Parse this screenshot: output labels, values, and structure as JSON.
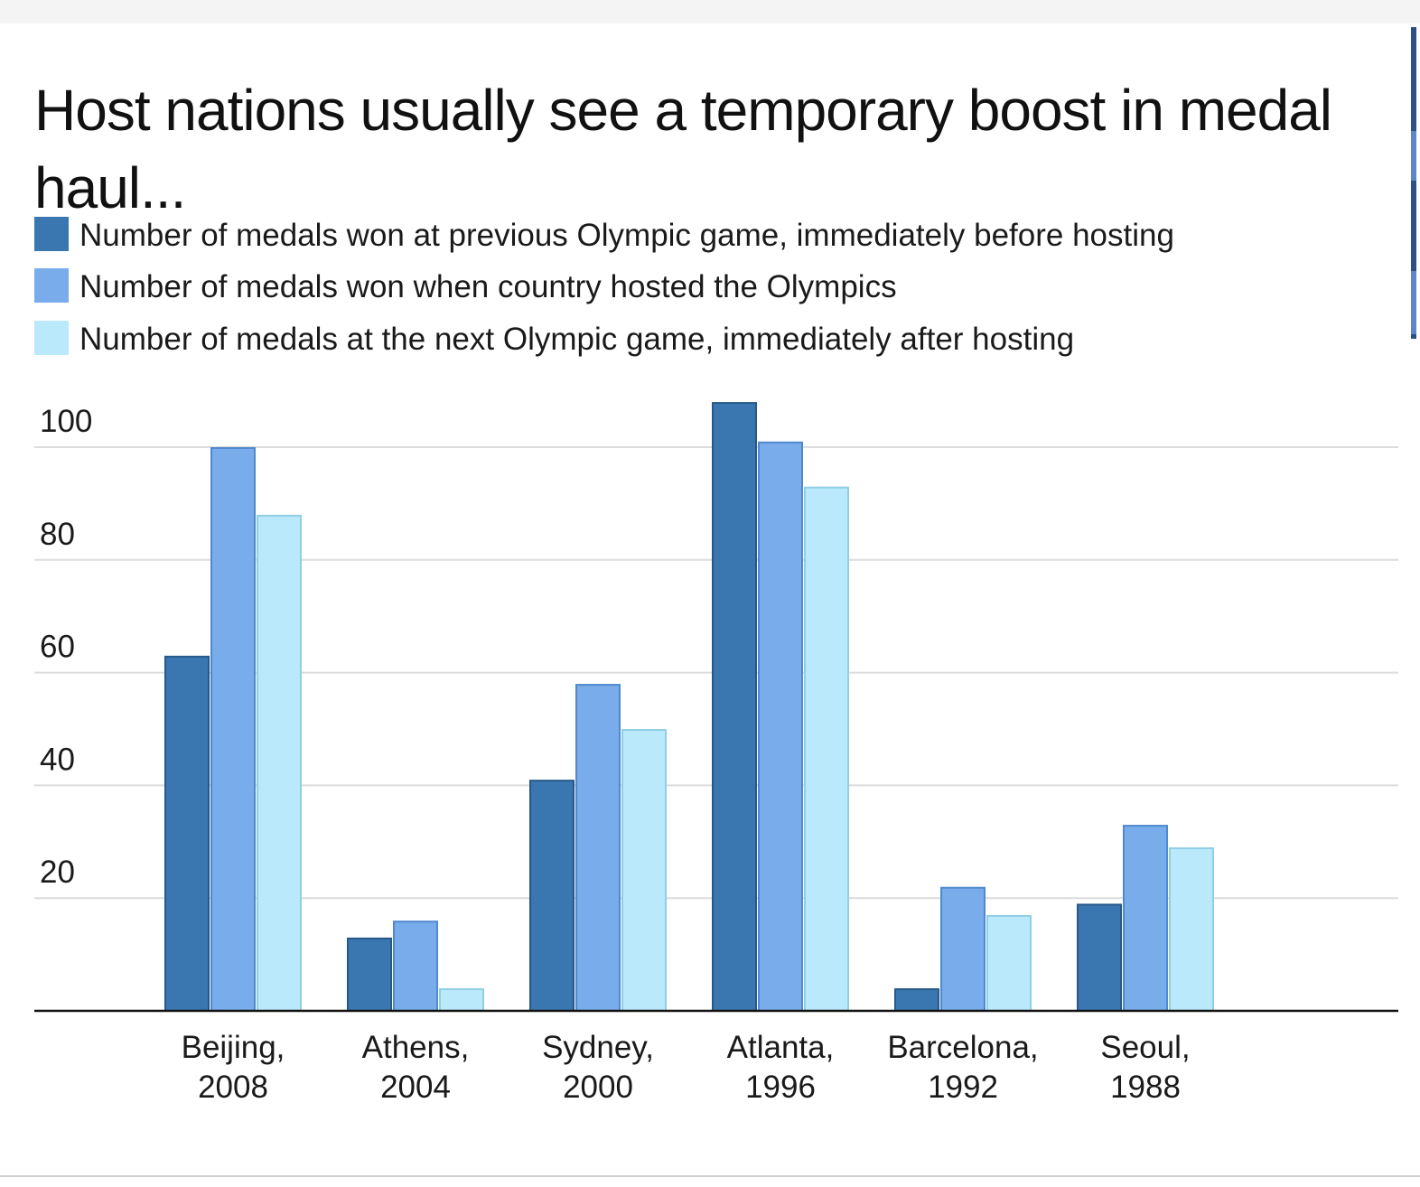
{
  "chart_data": {
    "type": "bar",
    "title": "Host nations usually see a temporary boost in medal haul...",
    "xlabel": "",
    "ylabel": "",
    "ylim": [
      0,
      100
    ],
    "yticks": [
      20,
      40,
      60,
      80,
      100
    ],
    "grid": true,
    "legend_position": "top-left",
    "categories": [
      "Beijing, 2008",
      "Athens, 2004",
      "Sydney, 2000",
      "Atlanta, 1996",
      "Barcelona, 1992",
      "Seoul, 1988"
    ],
    "category_lines": [
      [
        "Beijing,",
        "2008"
      ],
      [
        "Athens,",
        "2004"
      ],
      [
        "Sydney,",
        "2000"
      ],
      [
        "Atlanta,",
        "1996"
      ],
      [
        "Barcelona,",
        "1992"
      ],
      [
        "Seoul,",
        "1988"
      ]
    ],
    "series": [
      {
        "name": "Number of medals won at previous Olympic game, immediately before hosting",
        "values": [
          63,
          13,
          41,
          108,
          4,
          19
        ]
      },
      {
        "name": "Number of medals won when country hosted the Olympics",
        "values": [
          100,
          16,
          58,
          101,
          22,
          33
        ]
      },
      {
        "name": "Number of medals at the next Olympic game, immediately after hosting",
        "values": [
          88,
          4,
          50,
          93,
          17,
          29
        ]
      }
    ]
  },
  "colors": {
    "series": [
      "#3a77b0",
      "#78aceb",
      "#b9e9fb"
    ],
    "series_stroke": [
      "#26598a",
      "#5089cd",
      "#8fcfe6"
    ],
    "grid": "#dcdcdc",
    "axis": "#111111",
    "text": "#1a1a1a"
  }
}
